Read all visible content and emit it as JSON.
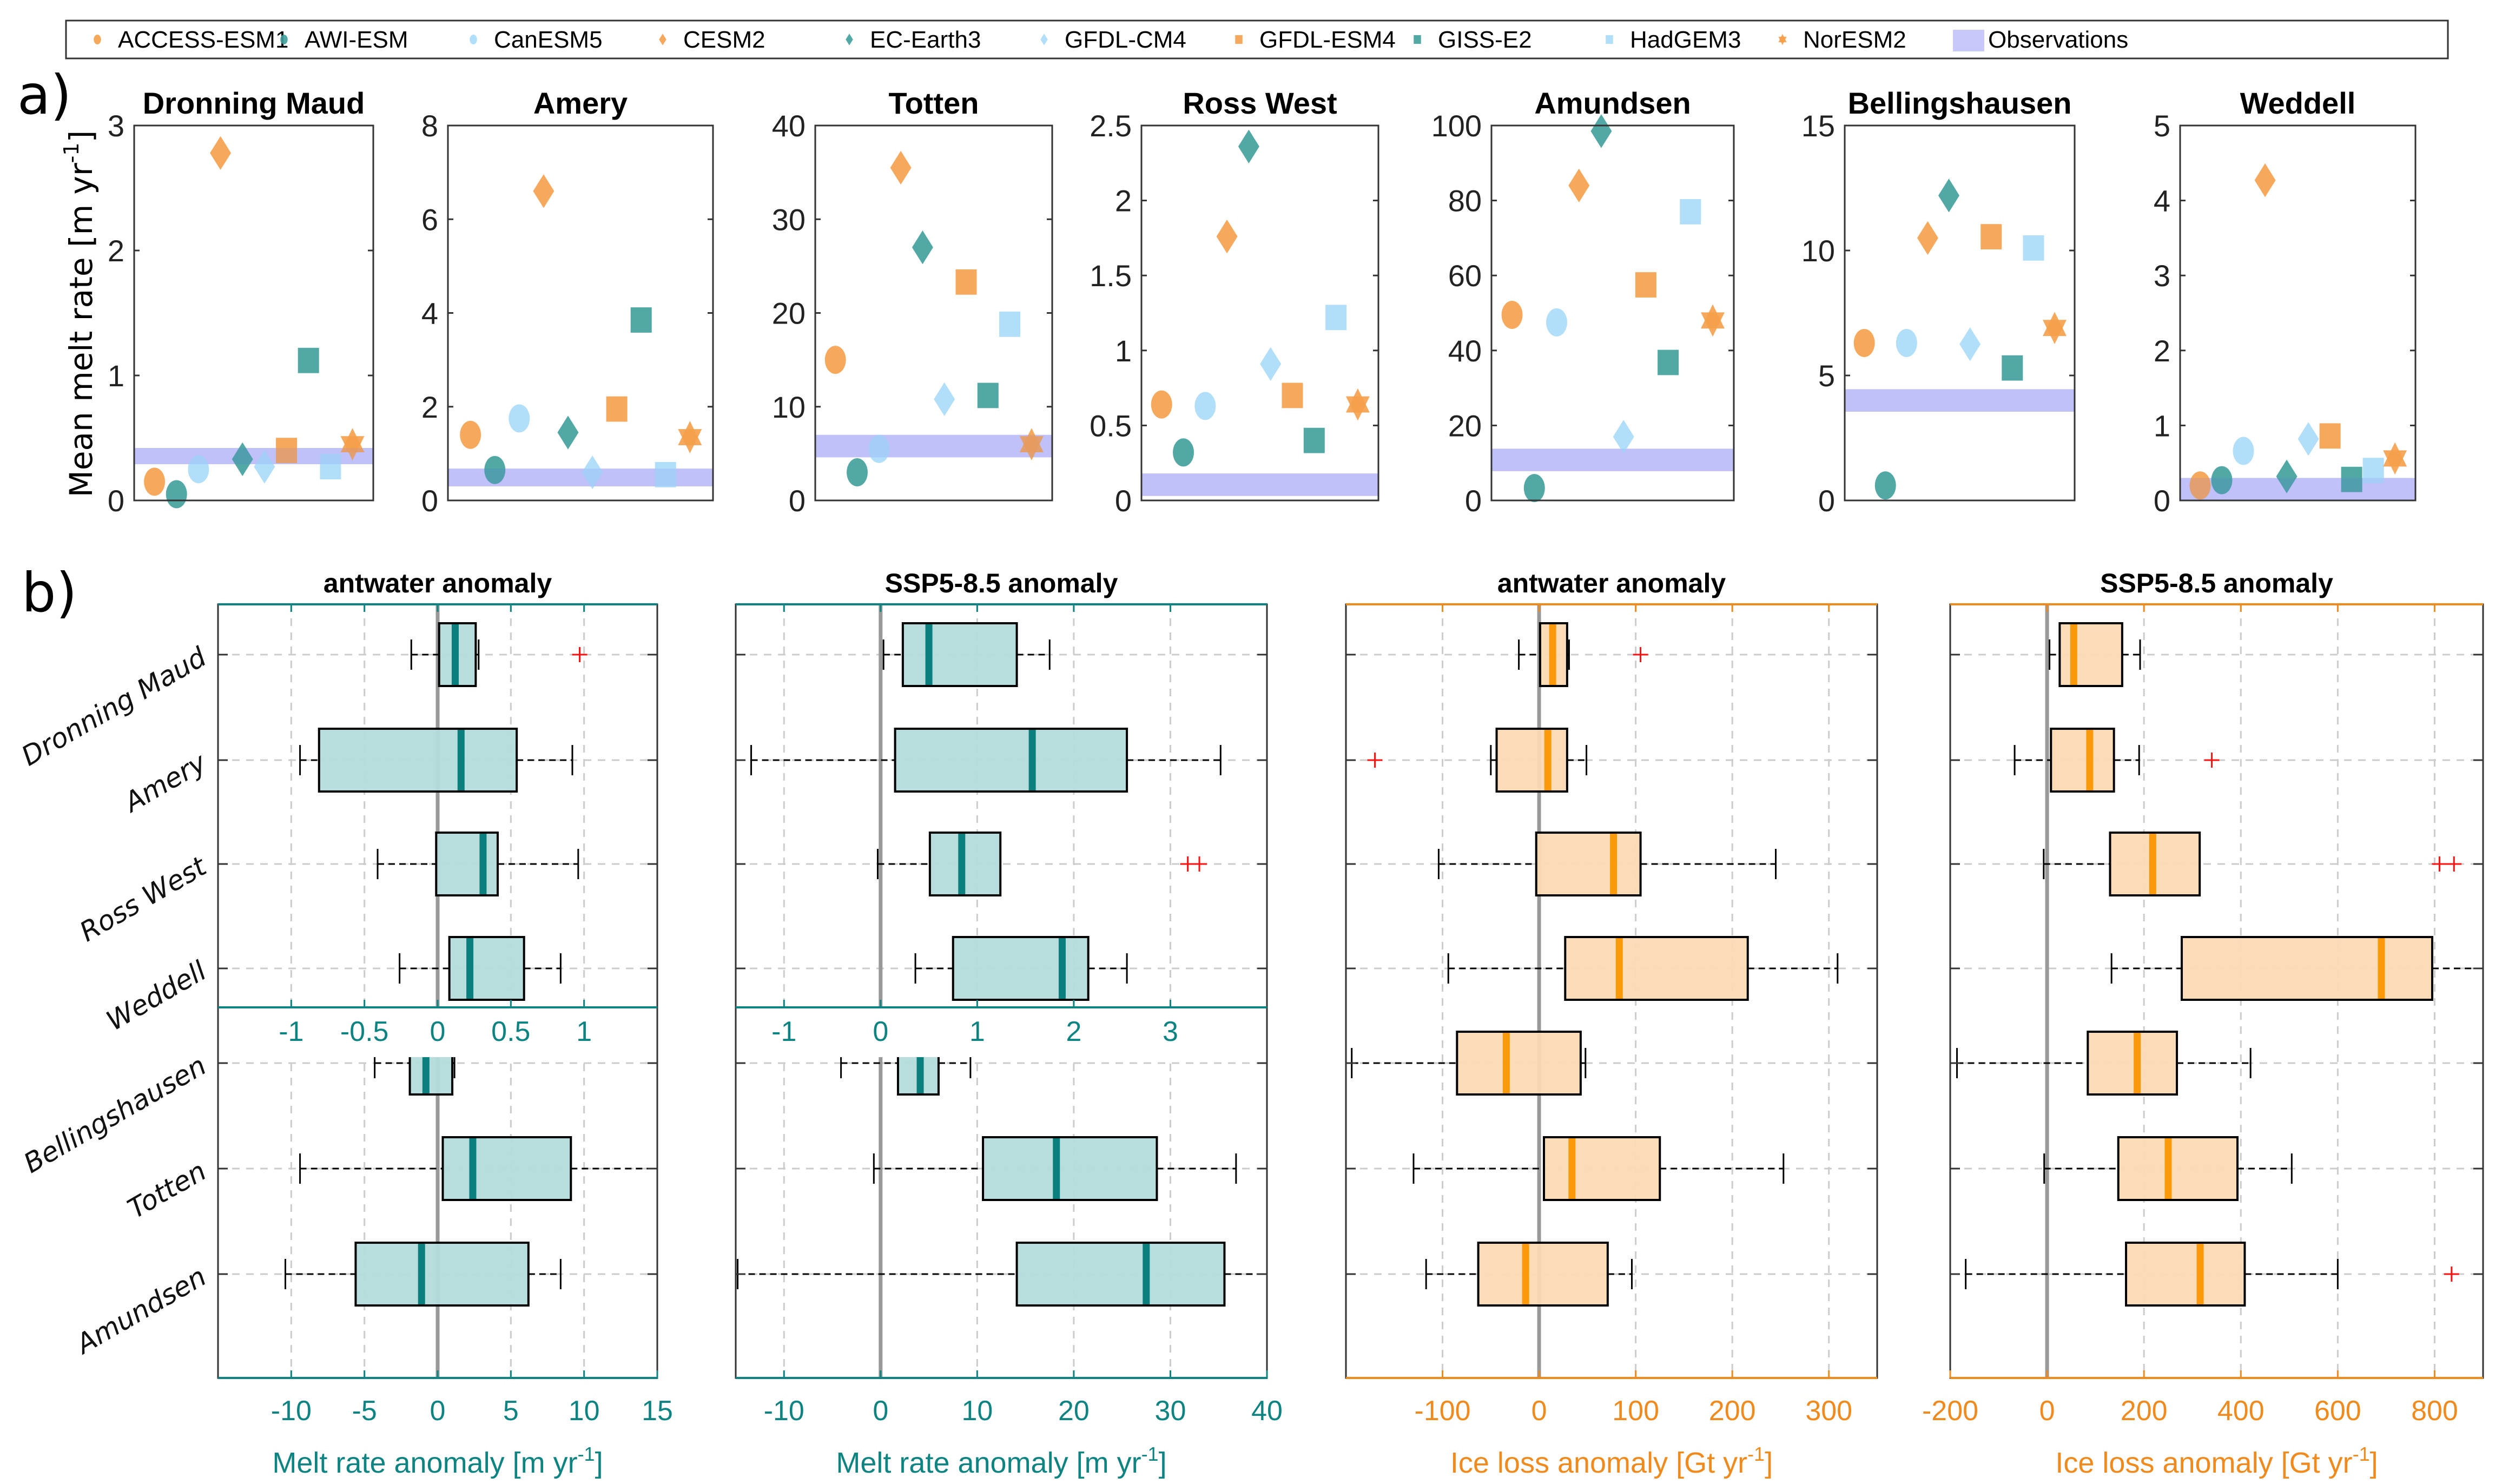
{
  "figure": {
    "panel_a_label": "a)",
    "panel_b_label": "b)"
  },
  "legend": {
    "placement": "top",
    "entries": [
      {
        "name": "ACCESS-ESM1",
        "marker": "circle",
        "color": "#F5A04A"
      },
      {
        "name": "AWI-ESM",
        "marker": "circle",
        "color": "#3E9E9A"
      },
      {
        "name": "CanESM5",
        "marker": "circle",
        "color": "#A8DAF7"
      },
      {
        "name": "CESM2",
        "marker": "diamond",
        "color": "#F5A04A"
      },
      {
        "name": "EC-Earth3",
        "marker": "diamond",
        "color": "#3E9E9A"
      },
      {
        "name": "GFDL-CM4",
        "marker": "diamond",
        "color": "#A8DAF7"
      },
      {
        "name": "GFDL-ESM4",
        "marker": "square",
        "color": "#F5A04A"
      },
      {
        "name": "GISS-E2",
        "marker": "square",
        "color": "#3E9E9A"
      },
      {
        "name": "HadGEM3",
        "marker": "square",
        "color": "#A8DAF7"
      },
      {
        "name": "NorESM2",
        "marker": "hexagram",
        "color": "#F5A04A"
      },
      {
        "name": "Observations",
        "marker": "band",
        "color": "#C8C8FA"
      }
    ]
  },
  "chart_data": [
    {
      "type": "scatter",
      "group": "a",
      "ylabel": "Mean melt rate [m yr-1]",
      "ylabel_main": "Mean melt rate [m yr",
      "ylabel_sup": "-1",
      "ylabel_end": "]",
      "models": [
        "ACCESS-ESM1",
        "AWI-ESM",
        "CanESM5",
        "CESM2",
        "EC-Earth3",
        "GFDL-CM4",
        "GFDL-ESM4",
        "GISS-E2",
        "HadGEM3",
        "NorESM2"
      ],
      "panels": [
        {
          "title": "Dronning Maud",
          "ylim": [
            0,
            3
          ],
          "yticks": [
            0,
            1,
            2,
            3
          ],
          "values": [
            0.15,
            0.05,
            0.25,
            2.78,
            0.33,
            0.27,
            0.4,
            1.12,
            0.27,
            0.45
          ],
          "obs": [
            0.29,
            0.42
          ]
        },
        {
          "title": "Amery",
          "ylim": [
            0,
            8
          ],
          "yticks": [
            0,
            2,
            4,
            6,
            8
          ],
          "values": [
            1.4,
            0.65,
            1.75,
            6.6,
            1.45,
            0.6,
            1.95,
            3.85,
            0.55,
            1.35
          ],
          "obs": [
            0.3,
            0.68
          ]
        },
        {
          "title": "Totten",
          "ylim": [
            0,
            40
          ],
          "yticks": [
            0,
            10,
            20,
            30,
            40
          ],
          "values": [
            15,
            3,
            5.5,
            35.5,
            27,
            10.8,
            23.3,
            11.2,
            18.8,
            6
          ],
          "obs": [
            4.6,
            7
          ]
        },
        {
          "title": "Ross West",
          "ylim": [
            0,
            2.5
          ],
          "yticks": [
            0,
            0.5,
            1,
            1.5,
            2,
            2.5
          ],
          "values": [
            0.64,
            0.32,
            0.63,
            1.76,
            2.36,
            0.91,
            0.7,
            0.4,
            1.22,
            0.64
          ],
          "obs": [
            0.03,
            0.18
          ]
        },
        {
          "title": "Amundsen",
          "ylim": [
            0,
            100
          ],
          "yticks": [
            0,
            20,
            40,
            60,
            80,
            100
          ],
          "values": [
            49.5,
            3.3,
            47.5,
            84,
            98.5,
            17,
            57.5,
            36.8,
            77,
            48
          ],
          "obs": [
            7.8,
            13.8
          ]
        },
        {
          "title": "Bellingshausen",
          "ylim": [
            0,
            15
          ],
          "yticks": [
            0,
            5,
            10,
            15
          ],
          "values": [
            6.3,
            0.6,
            6.3,
            10.5,
            12.2,
            6.25,
            10.55,
            5.3,
            10.1,
            6.9
          ],
          "obs": [
            3.55,
            4.45
          ]
        },
        {
          "title": "Weddell",
          "ylim": [
            0,
            5
          ],
          "yticks": [
            0,
            1,
            2,
            3,
            4,
            5
          ],
          "values": [
            0.2,
            0.27,
            0.66,
            4.27,
            0.32,
            0.82,
            0.86,
            0.28,
            0.4,
            0.56
          ],
          "obs": [
            0,
            0.3
          ]
        }
      ]
    },
    {
      "type": "box",
      "group": "b",
      "category_labels_top": [
        "Dronning Maud",
        "Amery",
        "Ross West",
        "Weddell"
      ],
      "category_labels_bottom": [
        "Bellingshausen",
        "Totten",
        "Amundsen"
      ],
      "panels": [
        {
          "title": "antwater anomaly",
          "color": "#0E8482",
          "fill": "#B3DBDA",
          "median_color": "#0A7F7D",
          "xlabel_main": "Melt rate anomaly [m yr",
          "xlabel_sup": "-1",
          "xlabel_end": "]",
          "top_axis": {
            "xlim": [
              -1.5,
              1.5
            ],
            "xticks": [
              -1,
              -0.5,
              0,
              0.5,
              1
            ],
            "xticklabels": [
              "-1",
              "-0.5",
              "0",
              "0.5",
              "1"
            ]
          },
          "bottom_axis": {
            "xlim": [
              -15,
              15
            ],
            "xticks": [
              -10,
              -5,
              0,
              5,
              10,
              15
            ],
            "xticklabels": [
              "-10",
              "-5",
              "0",
              "5",
              "10",
              "15"
            ]
          },
          "top_boxes": [
            {
              "region": "Dronning Maud",
              "whisker_low": -0.18,
              "q1": 0.01,
              "median": 0.12,
              "q3": 0.26,
              "whisker_high": 0.28,
              "outliers": [
                0.97
              ]
            },
            {
              "region": "Amery",
              "whisker_low": -0.94,
              "q1": -0.81,
              "median": 0.16,
              "q3": 0.54,
              "whisker_high": 0.92,
              "outliers": []
            },
            {
              "region": "Ross West",
              "whisker_low": -0.41,
              "q1": -0.01,
              "median": 0.31,
              "q3": 0.41,
              "whisker_high": 0.96,
              "outliers": []
            },
            {
              "region": "Weddell",
              "whisker_low": -0.26,
              "q1": 0.08,
              "median": 0.22,
              "q3": 0.59,
              "whisker_high": 0.84,
              "outliers": []
            }
          ],
          "bottom_boxes": [
            {
              "region": "Bellingshausen",
              "whisker_low": -4.3,
              "q1": -1.9,
              "median": -0.8,
              "q3": 1.0,
              "whisker_high": 1.15,
              "outliers": []
            },
            {
              "region": "Totten",
              "whisker_low": -9.4,
              "q1": 0.35,
              "median": 2.4,
              "q3": 9.1,
              "whisker_high": 15,
              "outliers": []
            },
            {
              "region": "Amundsen",
              "whisker_low": -10.4,
              "q1": -5.6,
              "median": -1.1,
              "q3": 6.2,
              "whisker_high": 8.4,
              "outliers": []
            }
          ]
        },
        {
          "title": "SSP5-8.5 anomaly",
          "color": "#0E8482",
          "fill": "#B3DBDA",
          "median_color": "#0A7F7D",
          "xlabel_main": "Melt rate anomaly [m yr",
          "xlabel_sup": "-1",
          "xlabel_end": "]",
          "top_axis": {
            "xlim": [
              -1.5,
              4
            ],
            "xticks": [
              -1,
              0,
              1,
              2,
              3
            ],
            "xticklabels": [
              "-1",
              "0",
              "1",
              "2",
              "3"
            ]
          },
          "bottom_axis": {
            "xlim": [
              -15,
              40
            ],
            "xticks": [
              -10,
              0,
              10,
              20,
              30,
              40
            ],
            "xticklabels": [
              "-10",
              "0",
              "10",
              "20",
              "30",
              "40"
            ]
          },
          "top_boxes": [
            {
              "region": "Dronning Maud",
              "whisker_low": 0.03,
              "q1": 0.23,
              "median": 0.5,
              "q3": 1.41,
              "whisker_high": 1.75,
              "outliers": []
            },
            {
              "region": "Amery",
              "whisker_low": -1.34,
              "q1": 0.15,
              "median": 1.57,
              "q3": 2.55,
              "whisker_high": 3.52,
              "outliers": []
            },
            {
              "region": "Ross West",
              "whisker_low": -0.03,
              "q1": 0.51,
              "median": 0.84,
              "q3": 1.24,
              "whisker_high": 1.24,
              "outliers": [
                3.18,
                3.3
              ]
            },
            {
              "region": "Weddell",
              "whisker_low": 0.36,
              "q1": 0.75,
              "median": 1.88,
              "q3": 2.15,
              "whisker_high": 2.55,
              "outliers": []
            }
          ],
          "bottom_boxes": [
            {
              "region": "Bellingshausen",
              "whisker_low": -4.1,
              "q1": 1.8,
              "median": 4.1,
              "q3": 6.0,
              "whisker_high": 9.3,
              "outliers": []
            },
            {
              "region": "Totten",
              "whisker_low": -0.7,
              "q1": 10.6,
              "median": 18.2,
              "q3": 28.6,
              "whisker_high": 36.8,
              "outliers": []
            },
            {
              "region": "Amundsen",
              "whisker_low": -14.8,
              "q1": 14.1,
              "median": 27.5,
              "q3": 35.6,
              "whisker_high": 40,
              "outliers": []
            }
          ]
        },
        {
          "title": "antwater anomaly",
          "color": "#F08A1C",
          "fill": "#FBDAB3",
          "median_color": "#FA9A0A",
          "xlabel_main": "Ice loss anomaly [Gt yr",
          "xlabel_sup": "-1",
          "xlabel_end": "]",
          "top_axis": {
            "xlim": [
              -200,
              350
            ],
            "xticks": [
              -100,
              0,
              100,
              200,
              300
            ],
            "xticklabels": []
          },
          "bottom_axis": {
            "xlim": [
              -200,
              350
            ],
            "xticks": [
              -100,
              0,
              100,
              200,
              300
            ],
            "xticklabels": [
              "-100",
              "0",
              "100",
              "200",
              "300"
            ]
          },
          "boxes": [
            {
              "region": "Dronning Maud",
              "whisker_low": -21,
              "q1": 1,
              "median": 14,
              "q3": 29,
              "whisker_high": 31,
              "outliers": [
                105
              ]
            },
            {
              "region": "Amery",
              "whisker_low": -50,
              "q1": -44,
              "median": 9,
              "q3": 29,
              "whisker_high": 49,
              "outliers": [
                -170
              ]
            },
            {
              "region": "Ross West",
              "whisker_low": -104,
              "q1": -3,
              "median": 77,
              "q3": 105,
              "whisker_high": 245,
              "outliers": []
            },
            {
              "region": "Weddell",
              "whisker_low": -94,
              "q1": 27,
              "median": 83,
              "q3": 216,
              "whisker_high": 309,
              "outliers": []
            },
            {
              "region": "Bellingshausen",
              "whisker_low": -194,
              "q1": -85,
              "median": -34,
              "q3": 43,
              "whisker_high": 48,
              "outliers": []
            },
            {
              "region": "Totten",
              "whisker_low": -130,
              "q1": 5,
              "median": 34,
              "q3": 125,
              "whisker_high": 253,
              "outliers": []
            },
            {
              "region": "Amundsen",
              "whisker_low": -117,
              "q1": -63,
              "median": -14,
              "q3": 71,
              "whisker_high": 96,
              "outliers": []
            }
          ]
        },
        {
          "title": "SSP5-8.5 anomaly",
          "color": "#F08A1C",
          "fill": "#FBDAB3",
          "median_color": "#FA9A0A",
          "xlabel_main": "Ice loss anomaly [Gt yr",
          "xlabel_sup": "-1",
          "xlabel_end": "]",
          "top_axis": {
            "xlim": [
              -200,
              900
            ],
            "xticks": [
              0,
              200,
              400,
              600,
              800
            ],
            "xticklabels": []
          },
          "bottom_axis": {
            "xlim": [
              -200,
              900
            ],
            "xticks": [
              -200,
              0,
              200,
              400,
              600,
              800
            ],
            "xticklabels": [
              "-200",
              "0",
              "200",
              "400",
              "600",
              "800"
            ]
          },
          "boxes": [
            {
              "region": "Dronning Maud",
              "whisker_low": 5,
              "q1": 26,
              "median": 55,
              "q3": 155,
              "whisker_high": 192,
              "outliers": []
            },
            {
              "region": "Amery",
              "whisker_low": -67,
              "q1": 8,
              "median": 88,
              "q3": 138,
              "whisker_high": 190,
              "outliers": [
                340
              ]
            },
            {
              "region": "Ross West",
              "whisker_low": -7,
              "q1": 130,
              "median": 218,
              "q3": 315,
              "whisker_high": 315,
              "outliers": [
                810,
                840
              ]
            },
            {
              "region": "Weddell",
              "whisker_low": 133,
              "q1": 278,
              "median": 690,
              "q3": 795,
              "whisker_high": 900,
              "outliers": []
            },
            {
              "region": "Bellingshausen",
              "whisker_low": -186,
              "q1": 84,
              "median": 186,
              "q3": 268,
              "whisker_high": 420,
              "outliers": []
            },
            {
              "region": "Totten",
              "whisker_low": -6,
              "q1": 147,
              "median": 250,
              "q3": 393,
              "whisker_high": 505,
              "outliers": []
            },
            {
              "region": "Amundsen",
              "whisker_low": -168,
              "q1": 163,
              "median": 316,
              "q3": 408,
              "whisker_high": 600,
              "outliers": [
                835
              ]
            }
          ]
        }
      ]
    }
  ]
}
